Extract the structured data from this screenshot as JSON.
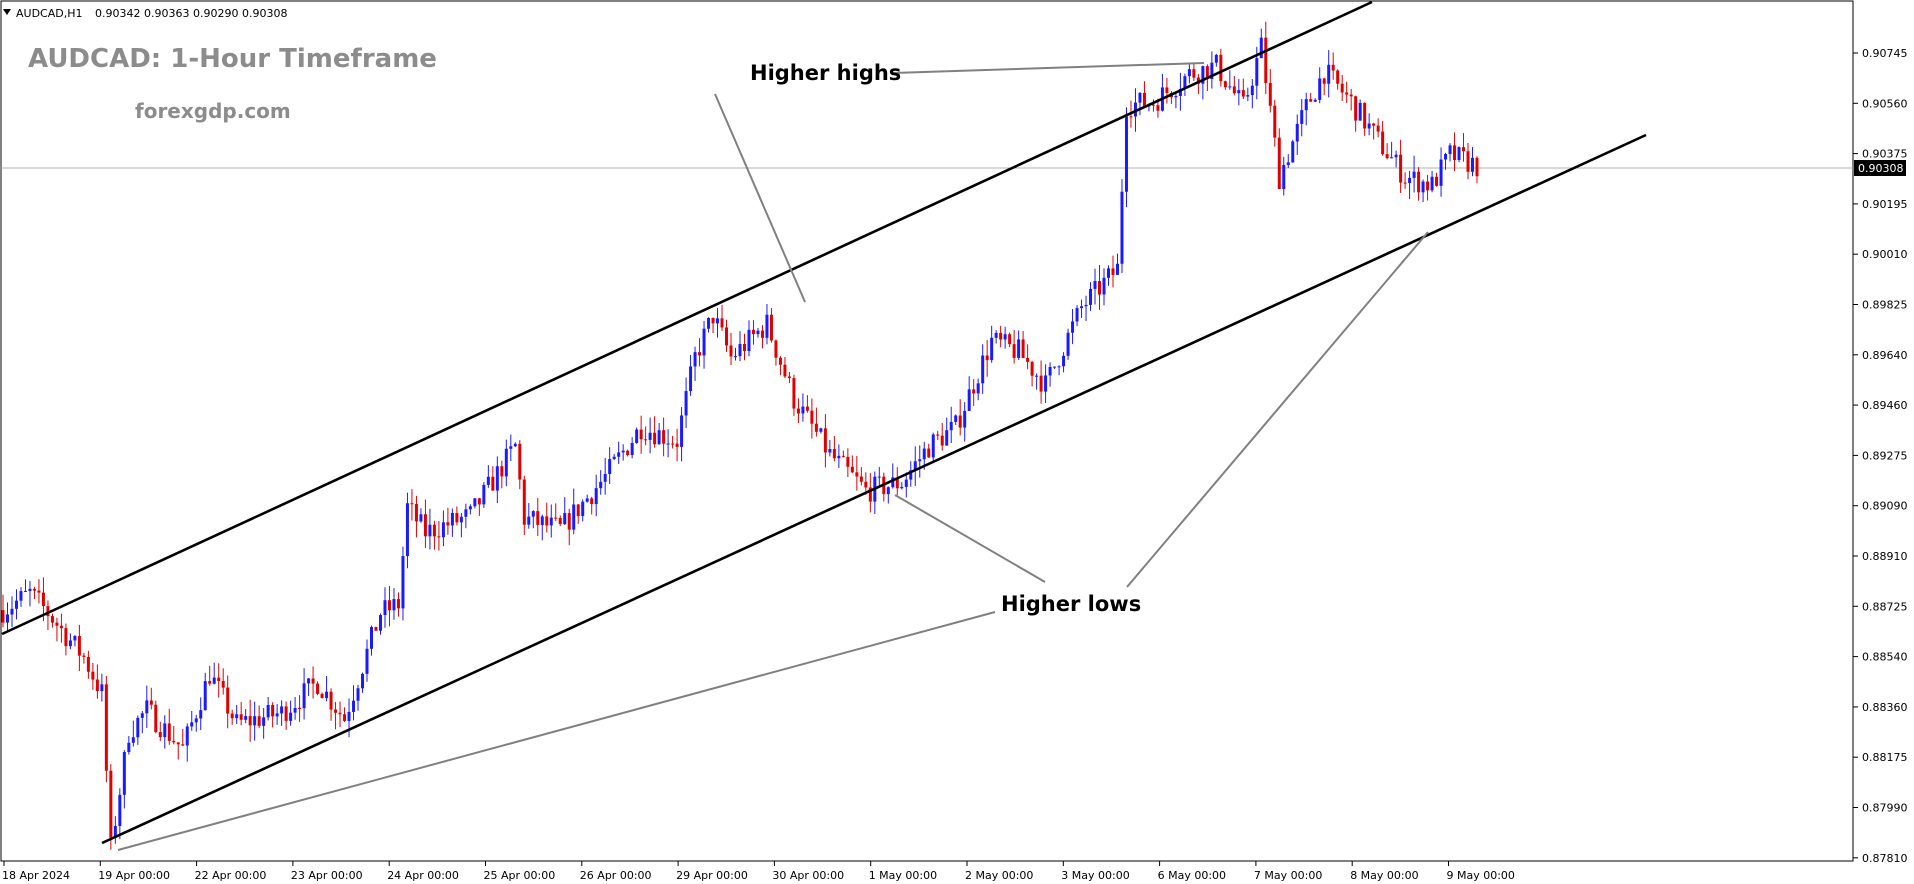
{
  "symbol_info": {
    "symbol": "AUDCAD,H1",
    "ohlc": "0.90342 0.90363 0.90290 0.90308"
  },
  "header": {
    "title": "AUDCAD: 1-Hour Timeframe",
    "website": "forexgdp.com"
  },
  "annotations": {
    "higher_highs": "Higher highs",
    "higher_lows": "Higher lows"
  },
  "current_price": "0.90308",
  "colors": {
    "bull": "#1a1aff",
    "bear": "#e00000",
    "channel": "#000000",
    "pointer": "#808080",
    "grid": "#b0b0b0"
  },
  "chart_data": {
    "type": "candlestick",
    "title": "AUDCAD: 1-Hour Timeframe",
    "y_ticks": [
      "0.90745",
      "0.90560",
      "0.90375",
      "0.90195",
      "0.90010",
      "0.89825",
      "0.89640",
      "0.89460",
      "0.89275",
      "0.89090",
      "0.88910",
      "0.88725",
      "0.88540",
      "0.88360",
      "0.88175",
      "0.87990",
      "0.87810"
    ],
    "x_ticks": [
      "18 Apr 2024",
      "19 Apr 00:00",
      "22 Apr 00:00",
      "23 Apr 00:00",
      "24 Apr 00:00",
      "25 Apr 00:00",
      "26 Apr 00:00",
      "29 Apr 00:00",
      "30 Apr 00:00",
      "1 May 00:00",
      "2 May 00:00",
      "3 May 00:00",
      "6 May 00:00",
      "7 May 00:00",
      "8 May 00:00",
      "9 May 00:00"
    ],
    "ylim": [
      0.8779,
      0.9088
    ],
    "price_path": [
      {
        "t": 0,
        "p": 0.8869
      },
      {
        "t": 6,
        "p": 0.8875
      },
      {
        "t": 10,
        "p": 0.8868
      },
      {
        "t": 18,
        "p": 0.8852
      },
      {
        "t": 22,
        "p": 0.8839
      },
      {
        "t": 24,
        "p": 0.8783
      },
      {
        "t": 28,
        "p": 0.8825
      },
      {
        "t": 32,
        "p": 0.8833
      },
      {
        "t": 40,
        "p": 0.8819
      },
      {
        "t": 46,
        "p": 0.8846
      },
      {
        "t": 52,
        "p": 0.8828
      },
      {
        "t": 62,
        "p": 0.8832
      },
      {
        "t": 70,
        "p": 0.8843
      },
      {
        "t": 76,
        "p": 0.883
      },
      {
        "t": 84,
        "p": 0.8868
      },
      {
        "t": 88,
        "p": 0.8871
      },
      {
        "t": 90,
        "p": 0.8906
      },
      {
        "t": 94,
        "p": 0.8897
      },
      {
        "t": 104,
        "p": 0.8903
      },
      {
        "t": 114,
        "p": 0.8928
      },
      {
        "t": 116,
        "p": 0.8902
      },
      {
        "t": 124,
        "p": 0.8898
      },
      {
        "t": 134,
        "p": 0.8917
      },
      {
        "t": 142,
        "p": 0.8935
      },
      {
        "t": 150,
        "p": 0.893
      },
      {
        "t": 154,
        "p": 0.896
      },
      {
        "t": 158,
        "p": 0.8975
      },
      {
        "t": 162,
        "p": 0.896
      },
      {
        "t": 170,
        "p": 0.8972
      },
      {
        "t": 176,
        "p": 0.8945
      },
      {
        "t": 184,
        "p": 0.8925
      },
      {
        "t": 192,
        "p": 0.8912
      },
      {
        "t": 200,
        "p": 0.8915
      },
      {
        "t": 206,
        "p": 0.8928
      },
      {
        "t": 212,
        "p": 0.8935
      },
      {
        "t": 220,
        "p": 0.8966
      },
      {
        "t": 226,
        "p": 0.8962
      },
      {
        "t": 232,
        "p": 0.895
      },
      {
        "t": 240,
        "p": 0.8978
      },
      {
        "t": 248,
        "p": 0.8992
      },
      {
        "t": 250,
        "p": 0.9051
      },
      {
        "t": 256,
        "p": 0.9052
      },
      {
        "t": 264,
        "p": 0.9062
      },
      {
        "t": 270,
        "p": 0.9065
      },
      {
        "t": 276,
        "p": 0.905
      },
      {
        "t": 280,
        "p": 0.9072
      },
      {
        "t": 284,
        "p": 0.9025
      },
      {
        "t": 290,
        "p": 0.905
      },
      {
        "t": 294,
        "p": 0.9063
      },
      {
        "t": 300,
        "p": 0.9052
      },
      {
        "t": 306,
        "p": 0.9038
      },
      {
        "t": 312,
        "p": 0.9025
      },
      {
        "t": 318,
        "p": 0.9022
      },
      {
        "t": 322,
        "p": 0.9033
      },
      {
        "t": 328,
        "p": 0.9029
      }
    ]
  }
}
